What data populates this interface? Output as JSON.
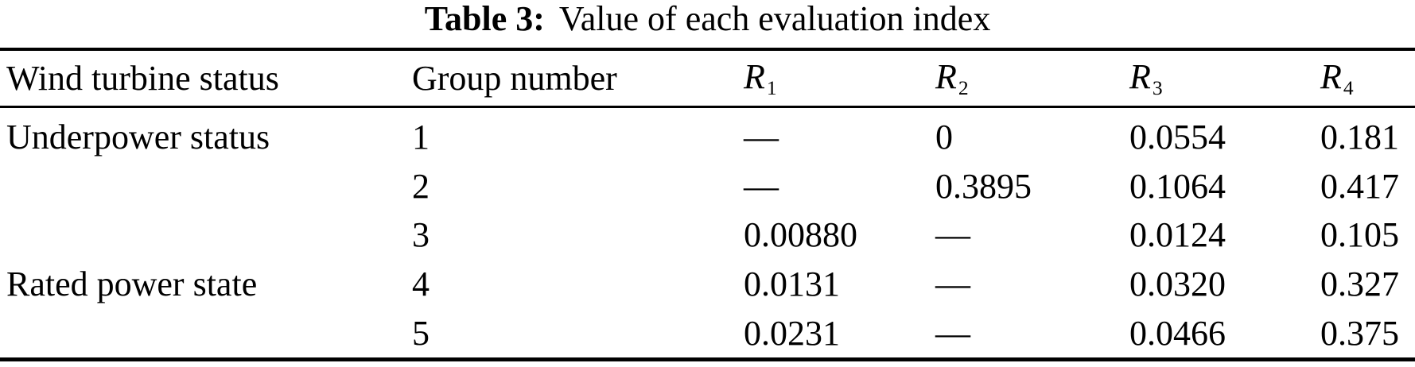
{
  "caption": {
    "label": "Table 3:",
    "text": "Value of each evaluation index"
  },
  "table": {
    "headers": {
      "status": "Wind turbine status",
      "group": "Group number",
      "r": [
        {
          "base": "R",
          "sub": "1"
        },
        {
          "base": "R",
          "sub": "2"
        },
        {
          "base": "R",
          "sub": "3"
        },
        {
          "base": "R",
          "sub": "4"
        }
      ]
    },
    "rows": [
      {
        "status": "Underpower status",
        "group": "1",
        "r1": "—",
        "r2": "0",
        "r3": "0.0554",
        "r4": "0.181"
      },
      {
        "status": "",
        "group": "2",
        "r1": "—",
        "r2": "0.3895",
        "r3": "0.1064",
        "r4": "0.417"
      },
      {
        "status": "",
        "group": "3",
        "r1": "0.00880",
        "r2": "—",
        "r3": "0.0124",
        "r4": "0.105"
      },
      {
        "status": "Rated power state",
        "group": "4",
        "r1": "0.0131",
        "r2": "—",
        "r3": "0.0320",
        "r4": "0.327"
      },
      {
        "status": "",
        "group": "5",
        "r1": "0.0231",
        "r2": "—",
        "r3": "0.0466",
        "r4": "0.375"
      }
    ]
  },
  "chart_data": {
    "type": "table",
    "title": "Table 3: Value of each evaluation index",
    "columns": [
      "Wind turbine status",
      "Group number",
      "R1",
      "R2",
      "R3",
      "R4"
    ],
    "rows": [
      [
        "Underpower status",
        "1",
        "—",
        "0",
        "0.0554",
        "0.181"
      ],
      [
        "",
        "2",
        "—",
        "0.3895",
        "0.1064",
        "0.417"
      ],
      [
        "",
        "3",
        "0.00880",
        "—",
        "0.0124",
        "0.105"
      ],
      [
        "Rated power state",
        "4",
        "0.0131",
        "—",
        "0.0320",
        "0.327"
      ],
      [
        "",
        "5",
        "0.0231",
        "—",
        "0.0466",
        "0.375"
      ]
    ]
  },
  "colors": {
    "background": "#ffffff",
    "text": "#000000",
    "rule": "#000000"
  }
}
